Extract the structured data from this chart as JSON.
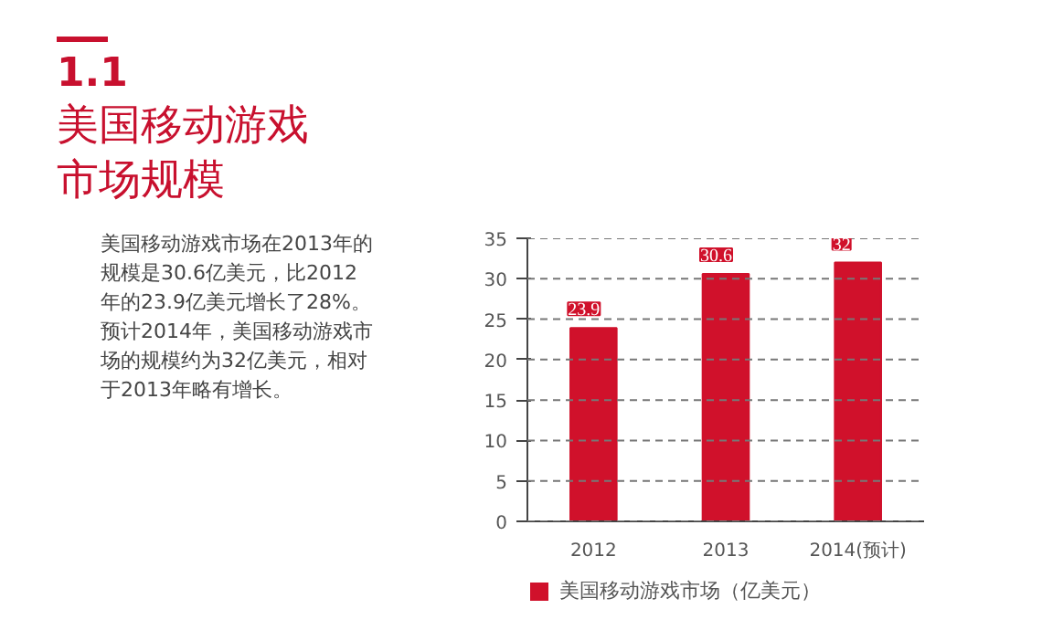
{
  "chart_data": {
    "type": "bar",
    "title": "1.1\n美国移动游戏市场规模",
    "annotations": [
      "美国移动游戏市场在2013年的规模是30.6亿美元，比2012年的23.9亿美元增长了28%。预计2014年，美国移动游戏市场的规模约为32亿美元，相对于2013年略有增长。"
    ],
    "categories": [
      "2012",
      "2013",
      "2014(预计)"
    ],
    "series": [
      {
        "name": "美国移动游戏市场（亿美元）",
        "color": "#d0112b",
        "values": [
          23.9,
          30.6,
          32
        ]
      }
    ],
    "ylim": [
      0,
      35
    ],
    "yticks": [
      0,
      5,
      10,
      15,
      20,
      25,
      30,
      35
    ],
    "grid": "y",
    "legend": "bottom",
    "data_labels": true
  }
}
